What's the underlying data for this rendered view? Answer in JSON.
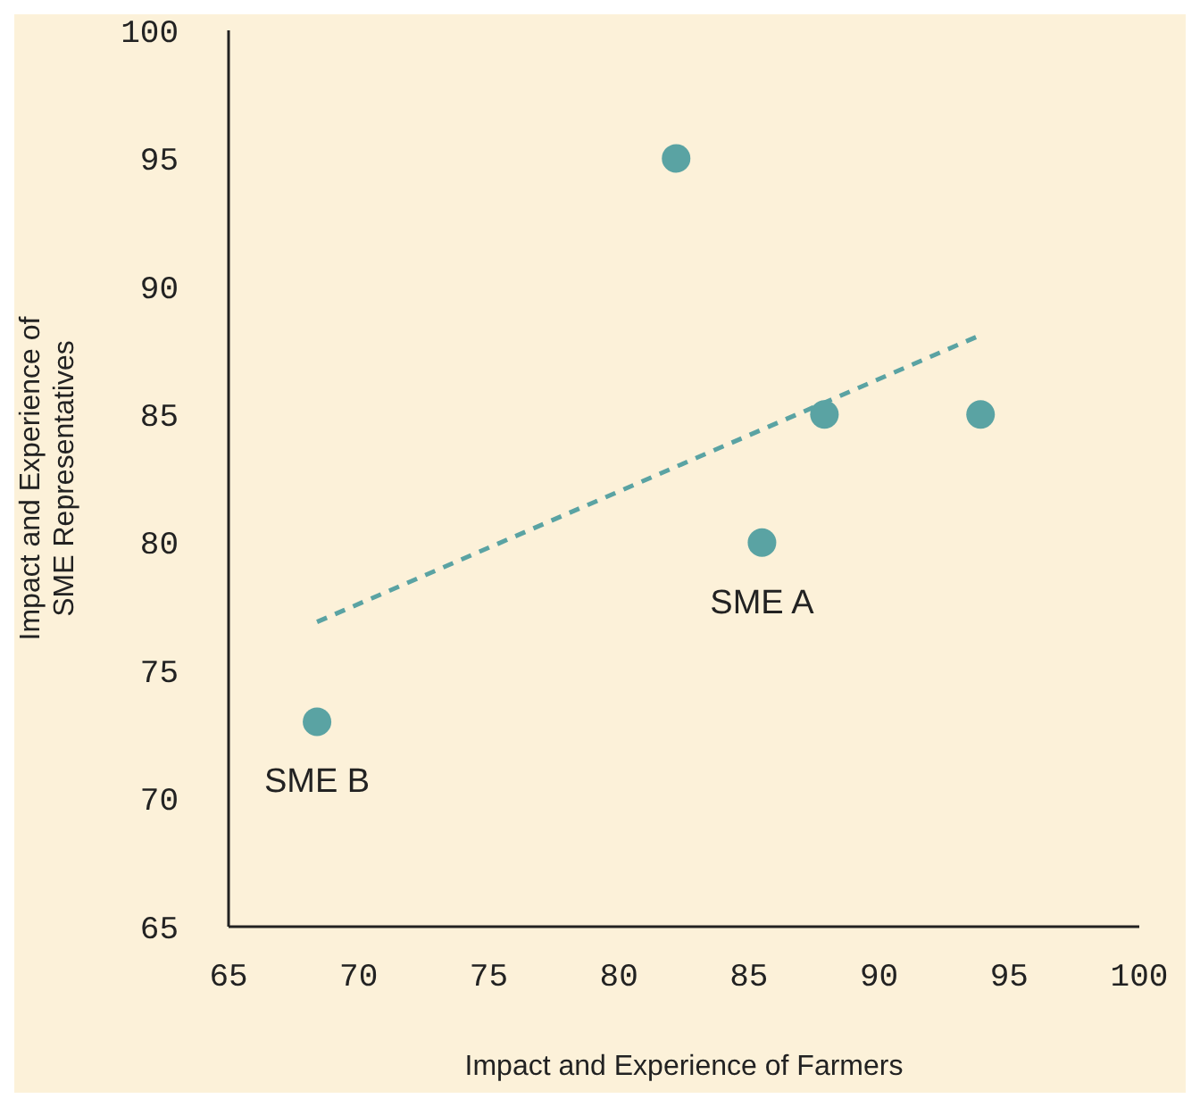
{
  "chart_data": {
    "type": "scatter",
    "xlabel": "Impact and Experience of Farmers",
    "ylabel": "Impact and Experience of SME Representatives",
    "xlim": [
      65,
      100
    ],
    "xticks": [
      65,
      70,
      75,
      80,
      85,
      90,
      95,
      100
    ],
    "ylim": [
      65,
      100
    ],
    "yticks": [
      65,
      70,
      75,
      80,
      85,
      90,
      95,
      100
    ],
    "marker": "circle",
    "series": [
      {
        "type": "scatter",
        "color": "#5aa3a3",
        "x": [
          68.4,
          82.2,
          85.5,
          87.9,
          93.9
        ],
        "values": [
          73,
          95,
          80,
          85,
          85
        ]
      },
      {
        "type": "line",
        "color": "#5aa3a3",
        "line_style": "dashed",
        "marker": "none",
        "x": [
          68.4,
          93.9
        ],
        "values": [
          76.9,
          88.1
        ]
      }
    ],
    "annotations": [
      {
        "text": "SME B",
        "x": 68.4,
        "y": 73
      },
      {
        "text": "SME A",
        "x": 85.5,
        "y": 80
      }
    ]
  }
}
